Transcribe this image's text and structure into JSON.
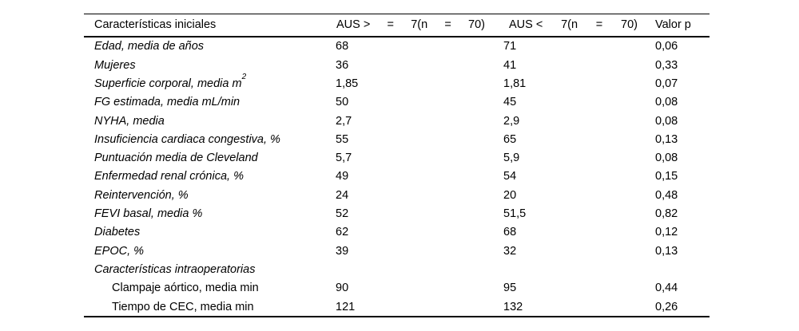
{
  "colors": {
    "background": "#ffffff",
    "text": "#000000",
    "rule": "#000000"
  },
  "table": {
    "header": {
      "col1": "Características iniciales",
      "col2_parts": [
        "AUS >",
        "=",
        "7(n",
        "=",
        "70)"
      ],
      "col3_parts": [
        "AUS <",
        "7(n",
        "=",
        "70)"
      ],
      "col4": "Valor p"
    },
    "rows": [
      {
        "label": "Edad, media de años",
        "sup": "",
        "italic": true,
        "indent": false,
        "aus_ge7": "68",
        "aus_lt7": "71",
        "p": "0,06"
      },
      {
        "label": "Mujeres",
        "sup": "",
        "italic": true,
        "indent": false,
        "aus_ge7": "36",
        "aus_lt7": "41",
        "p": "0,33"
      },
      {
        "label": "Superficie corporal, media m",
        "sup": "2",
        "italic": true,
        "indent": false,
        "aus_ge7": "1,85",
        "aus_lt7": "1,81",
        "p": "0,07"
      },
      {
        "label": "FG estimada, media mL/min",
        "sup": "",
        "italic": true,
        "indent": false,
        "aus_ge7": "50",
        "aus_lt7": "45",
        "p": "0,08"
      },
      {
        "label": "NYHA, media",
        "sup": "",
        "italic": true,
        "indent": false,
        "aus_ge7": "2,7",
        "aus_lt7": "2,9",
        "p": "0,08"
      },
      {
        "label": "Insuficiencia cardiaca congestiva, %",
        "sup": "",
        "italic": true,
        "indent": false,
        "aus_ge7": "55",
        "aus_lt7": "65",
        "p": "0,13"
      },
      {
        "label": "Puntuación media de Cleveland",
        "sup": "",
        "italic": true,
        "indent": false,
        "aus_ge7": "5,7",
        "aus_lt7": "5,9",
        "p": "0,08"
      },
      {
        "label": "Enfermedad renal crónica, %",
        "sup": "",
        "italic": true,
        "indent": false,
        "aus_ge7": "49",
        "aus_lt7": "54",
        "p": "0,15"
      },
      {
        "label": "Reintervención, %",
        "sup": "",
        "italic": true,
        "indent": false,
        "aus_ge7": "24",
        "aus_lt7": "20",
        "p": "0,48"
      },
      {
        "label": "FEVI basal, media %",
        "sup": "",
        "italic": true,
        "indent": false,
        "aus_ge7": "52",
        "aus_lt7": "51,5",
        "p": "0,82"
      },
      {
        "label": "Diabetes",
        "sup": "",
        "italic": true,
        "indent": false,
        "aus_ge7": "62",
        "aus_lt7": "68",
        "p": "0,12"
      },
      {
        "label": "EPOC, %",
        "sup": "",
        "italic": true,
        "indent": false,
        "aus_ge7": "39",
        "aus_lt7": "32",
        "p": "0,13"
      },
      {
        "label": "Características intraoperatorias",
        "sup": "",
        "italic": true,
        "indent": false,
        "aus_ge7": "",
        "aus_lt7": "",
        "p": ""
      },
      {
        "label": "Clampaje aórtico, media min",
        "sup": "",
        "italic": false,
        "indent": true,
        "aus_ge7": "90",
        "aus_lt7": "95",
        "p": "0,44"
      },
      {
        "label": "Tiempo de CEC, media min",
        "sup": "",
        "italic": false,
        "indent": true,
        "aus_ge7": "121",
        "aus_lt7": "132",
        "p": "0,26"
      }
    ]
  }
}
